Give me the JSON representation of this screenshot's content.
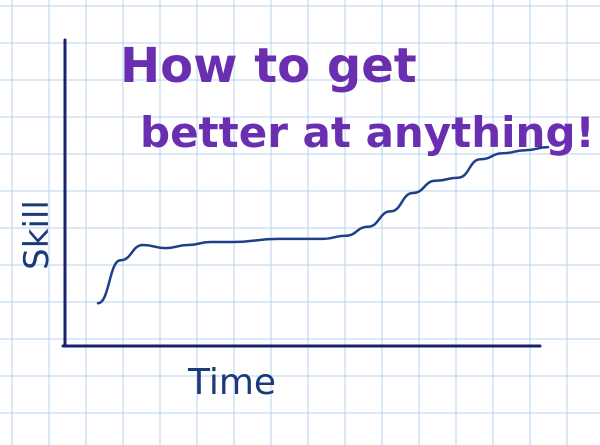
{
  "chart_data": {
    "type": "line",
    "title": "How to get better at anything!",
    "title_lines": [
      "How to get",
      "better at anything!"
    ],
    "xlabel": "Time",
    "ylabel": "Skill",
    "grid": true,
    "legend": "none",
    "xlim": [
      0,
      100
    ],
    "ylim": [
      0,
      100
    ],
    "series": [
      {
        "x": [
          0,
          5,
          10,
          15,
          20,
          25,
          30,
          40,
          50,
          55,
          60,
          65,
          70,
          75,
          80,
          85,
          90,
          95,
          100
        ],
        "y": [
          14,
          28,
          33,
          32,
          33,
          34,
          34,
          35,
          35,
          36,
          39,
          44,
          50,
          54,
          55,
          61,
          63,
          64,
          65
        ]
      }
    ],
    "colors": {
      "title": "#6a2fb0",
      "line": "#1f3f8a",
      "axes": "#1a1f6e",
      "grid": "#b7d2ec",
      "labels": "#1a3a7a"
    }
  }
}
